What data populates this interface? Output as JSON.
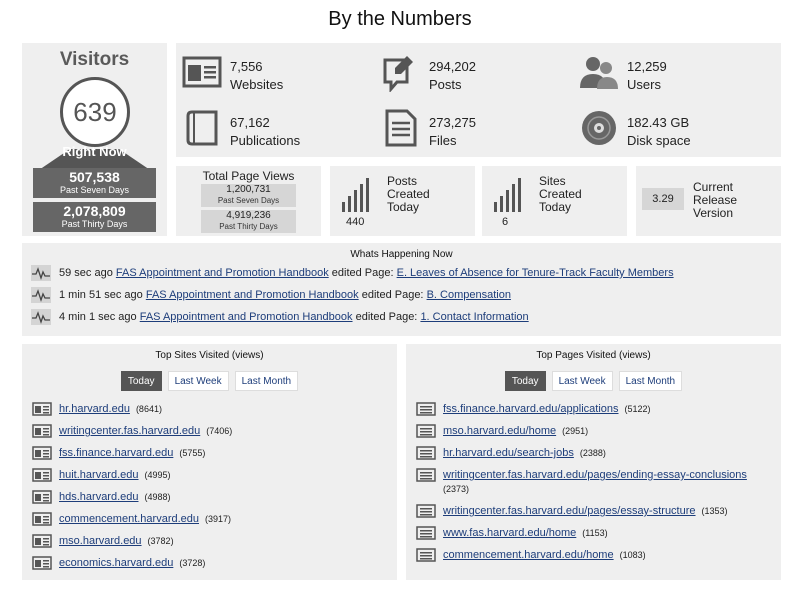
{
  "title": "By the Numbers",
  "visitors": {
    "title": "Visitors",
    "now_count": "639",
    "now_label": "Right Now",
    "seven_days_value": "507,538",
    "seven_days_label": "Past Seven Days",
    "thirty_days_value": "2,078,809",
    "thirty_days_label": "Past Thirty Days"
  },
  "stats": {
    "websites": {
      "value": "7,556",
      "label": "Websites",
      "icon": "website-icon"
    },
    "posts": {
      "value": "294,202",
      "label": "Posts",
      "icon": "post-icon"
    },
    "users": {
      "value": "12,259",
      "label": "Users",
      "icon": "users-icon"
    },
    "publications": {
      "value": "67,162",
      "label": "Publications",
      "icon": "book-icon"
    },
    "files": {
      "value": "273,275",
      "label": "Files",
      "icon": "file-icon"
    },
    "disk": {
      "value": "182.43 GB",
      "label": "Disk space",
      "icon": "disk-icon"
    }
  },
  "page_views": {
    "title": "Total Page Views",
    "seven_value": "1,200,731",
    "seven_label": "Past Seven Days",
    "thirty_value": "4,919,236",
    "thirty_label": "Past Thirty Days"
  },
  "posts_created": {
    "label": "Posts Created Today",
    "value": "440"
  },
  "sites_created": {
    "label": "Sites Created Today",
    "value": "6"
  },
  "release": {
    "value": "3.29",
    "label": "Current Release Version"
  },
  "happening": {
    "title": "Whats Happening Now",
    "rows": [
      {
        "time": "59 sec ago",
        "site": "FAS Appointment and Promotion Handbook",
        "action": "edited Page:",
        "page": "E. Leaves of Absence for Tenure-Track Faculty Members"
      },
      {
        "time": "1 min 51 sec ago",
        "site": "FAS Appointment and Promotion Handbook",
        "action": "edited Page:",
        "page": "B. Compensation"
      },
      {
        "time": "4 min 1 sec ago",
        "site": "FAS Appointment and Promotion Handbook",
        "action": "edited Page:",
        "page": "1. Contact Information"
      }
    ]
  },
  "top_sites": {
    "title": "Top Sites Visited (views)",
    "tabs": [
      "Today",
      "Last Week",
      "Last Month"
    ],
    "items": [
      {
        "name": "hr.harvard.edu",
        "count": "(8641)"
      },
      {
        "name": "writingcenter.fas.harvard.edu",
        "count": "(7406)"
      },
      {
        "name": "fss.finance.harvard.edu",
        "count": "(5755)"
      },
      {
        "name": "huit.harvard.edu",
        "count": "(4995)"
      },
      {
        "name": "hds.harvard.edu",
        "count": "(4988)"
      },
      {
        "name": "commencement.harvard.edu",
        "count": "(3917)"
      },
      {
        "name": "mso.harvard.edu",
        "count": "(3782)"
      },
      {
        "name": "economics.harvard.edu",
        "count": "(3728)"
      }
    ]
  },
  "top_pages": {
    "title": "Top Pages Visited (views)",
    "tabs": [
      "Today",
      "Last Week",
      "Last Month"
    ],
    "items": [
      {
        "name": "fss.finance.harvard.edu/applications",
        "count": "(5122)"
      },
      {
        "name": "mso.harvard.edu/home",
        "count": "(2951)"
      },
      {
        "name": "hr.harvard.edu/search-jobs",
        "count": "(2388)"
      },
      {
        "name": "writingcenter.fas.harvard.edu/pages/ending-essay-conclusions",
        "count": "(2373)"
      },
      {
        "name": "writingcenter.fas.harvard.edu/pages/essay-structure",
        "count": "(1353)"
      },
      {
        "name": "www.fas.harvard.edu/home",
        "count": "(1153)"
      },
      {
        "name": "commencement.harvard.edu/home",
        "count": "(1083)"
      }
    ]
  }
}
